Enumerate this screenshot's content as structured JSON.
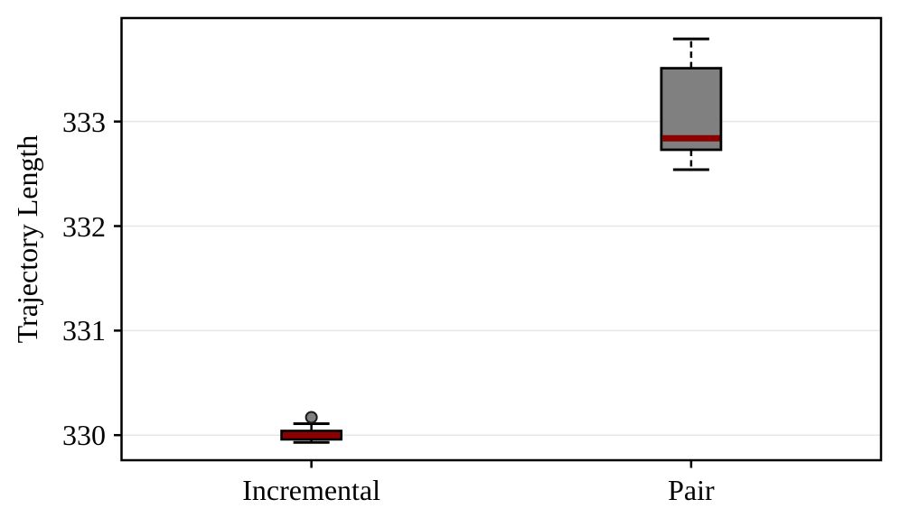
{
  "figure": {
    "background": "#ffffff"
  },
  "chart_data": {
    "type": "boxplot",
    "title": "",
    "xlabel": "",
    "ylabel": "Trajectory Length",
    "categories": [
      "Incremental",
      "Pair"
    ],
    "yticks": [
      330,
      331,
      332,
      333
    ],
    "ylim": [
      329.76,
      333.99
    ],
    "grid": "horizontal",
    "legend": "none",
    "series": [
      {
        "name": "Incremental",
        "whisker_low": 329.93,
        "q1": 329.96,
        "median": 330.0,
        "q3": 330.04,
        "whisker_high": 330.11,
        "outliers": [
          330.17
        ]
      },
      {
        "name": "Pair",
        "whisker_low": 332.54,
        "q1": 332.73,
        "median": 332.84,
        "q3": 333.51,
        "whisker_high": 333.79,
        "outliers": []
      }
    ],
    "colors": {
      "box_fill": "#808080",
      "box_edge": "#000000",
      "median": "#8b0000",
      "whisker": "#000000",
      "cap": "#000000",
      "outlier_fill": "#808080",
      "outlier_edge": "#1a1a1a",
      "grid": "#e7e7e7",
      "frame": "#000000",
      "text": "#000000"
    }
  }
}
